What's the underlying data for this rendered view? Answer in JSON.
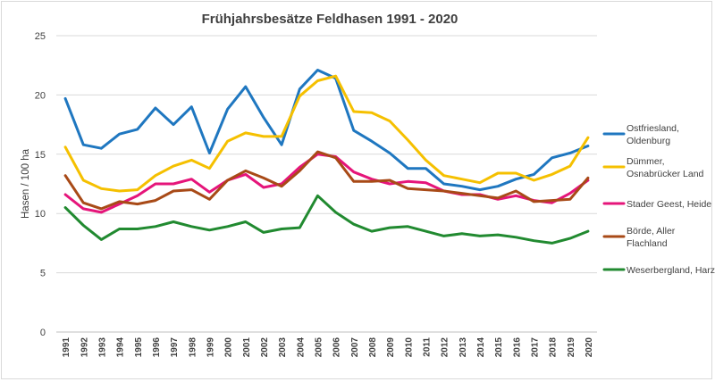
{
  "chart_data": {
    "type": "line",
    "title": "Frühjahrsbesätze Feldhasen 1991 - 2020",
    "xlabel": "",
    "ylabel": "Hasen / 100 ha",
    "ylim": [
      0,
      25
    ],
    "yticks": [
      0,
      5,
      10,
      15,
      20,
      25
    ],
    "grid": true,
    "legend_position": "right",
    "x": [
      "1991",
      "1992",
      "1993",
      "1994",
      "1995",
      "1996",
      "1997",
      "1998",
      "1999",
      "2000",
      "2001",
      "2002",
      "2003",
      "2004",
      "2005",
      "2006",
      "2007",
      "2008",
      "2009",
      "2010",
      "2011",
      "2012",
      "2013",
      "2014",
      "2015",
      "2016",
      "2017",
      "2018",
      "2019",
      "2020"
    ],
    "series": [
      {
        "name": "Ostfriesland, Oldenburg",
        "legend_lines": [
          "Ostfriesland,",
          "Oldenburg"
        ],
        "color": "#1f77c0",
        "values": [
          19.7,
          15.8,
          15.5,
          16.7,
          17.1,
          18.9,
          17.5,
          19.0,
          15.1,
          18.8,
          20.7,
          18.1,
          15.8,
          20.5,
          22.1,
          21.4,
          17.0,
          16.1,
          15.1,
          13.8,
          13.8,
          12.5,
          12.3,
          12.0,
          12.3,
          12.9,
          13.3,
          14.7,
          15.1,
          15.7
        ]
      },
      {
        "name": "Dümmer, Osnabrücker Land",
        "legend_lines": [
          "Dümmer,",
          "Osnabrücker Land"
        ],
        "color": "#f5c000",
        "values": [
          15.6,
          12.8,
          12.1,
          11.9,
          12.0,
          13.2,
          14.0,
          14.5,
          13.8,
          16.1,
          16.8,
          16.5,
          16.5,
          19.9,
          21.2,
          21.6,
          18.6,
          18.5,
          17.8,
          16.2,
          14.5,
          13.2,
          12.9,
          12.6,
          13.4,
          13.4,
          12.8,
          13.3,
          14.0,
          16.4
        ]
      },
      {
        "name": "Stader Geest, Heide",
        "legend_lines": [
          "Stader Geest, Heide"
        ],
        "color": "#e5157a",
        "values": [
          11.6,
          10.4,
          10.1,
          10.8,
          11.5,
          12.5,
          12.5,
          12.9,
          11.8,
          12.8,
          13.3,
          12.2,
          12.5,
          13.9,
          15.0,
          14.8,
          13.5,
          12.9,
          12.5,
          12.7,
          12.6,
          11.9,
          11.6,
          11.6,
          11.2,
          11.5,
          11.1,
          10.9,
          11.7,
          12.8
        ]
      },
      {
        "name": "Börde, Aller Flachland",
        "legend_lines": [
          "Börde, Aller",
          "Flachland"
        ],
        "color": "#a84a17",
        "values": [
          13.2,
          10.9,
          10.4,
          11.0,
          10.8,
          11.1,
          11.9,
          12.0,
          11.2,
          12.8,
          13.6,
          13.0,
          12.3,
          13.6,
          15.2,
          14.7,
          12.7,
          12.7,
          12.8,
          12.1,
          12.0,
          11.9,
          11.7,
          11.5,
          11.3,
          11.9,
          11.0,
          11.1,
          11.2,
          13.0
        ]
      },
      {
        "name": "Weserbergland, Harz",
        "legend_lines": [
          "Weserbergland, Harz"
        ],
        "color": "#218a30",
        "values": [
          10.5,
          9.0,
          7.8,
          8.7,
          8.7,
          8.9,
          9.3,
          8.9,
          8.6,
          8.9,
          9.3,
          8.4,
          8.7,
          8.8,
          11.5,
          10.1,
          9.1,
          8.5,
          8.8,
          8.9,
          8.5,
          8.1,
          8.3,
          8.1,
          8.2,
          8.0,
          7.7,
          7.5,
          7.9,
          8.5
        ]
      }
    ]
  }
}
